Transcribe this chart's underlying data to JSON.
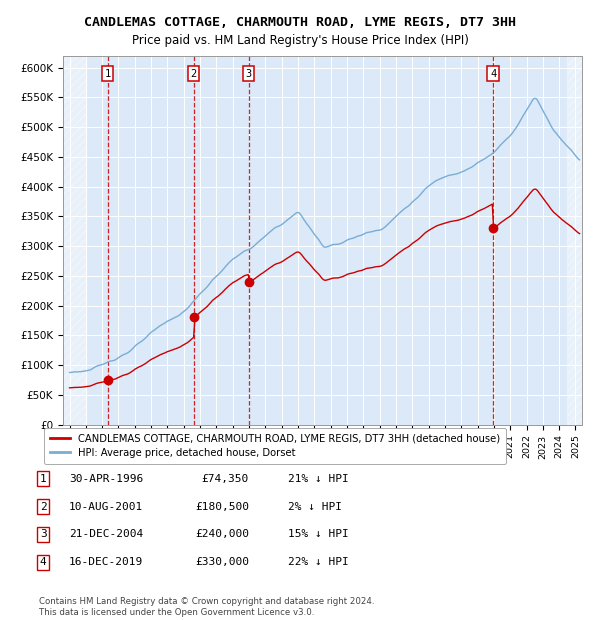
{
  "title": "CANDLEMAS COTTAGE, CHARMOUTH ROAD, LYME REGIS, DT7 3HH",
  "subtitle": "Price paid vs. HM Land Registry's House Price Index (HPI)",
  "ylim": [
    0,
    620000
  ],
  "ytick_vals": [
    0,
    50000,
    100000,
    150000,
    200000,
    250000,
    300000,
    350000,
    400000,
    450000,
    500000,
    550000,
    600000
  ],
  "ytick_labels": [
    "£0",
    "£50K",
    "£100K",
    "£150K",
    "£200K",
    "£250K",
    "£300K",
    "£350K",
    "£400K",
    "£450K",
    "£500K",
    "£550K",
    "£600K"
  ],
  "plot_bg": "#dce9f8",
  "trans_dates": [
    1996.33,
    2001.61,
    2004.97,
    2019.96
  ],
  "trans_prices": [
    74350,
    180500,
    240000,
    330000
  ],
  "trans_labels": [
    "1",
    "2",
    "3",
    "4"
  ],
  "transaction_dates_str": [
    "30-APR-1996",
    "10-AUG-2001",
    "21-DEC-2004",
    "16-DEC-2019"
  ],
  "transaction_prices_str": [
    "£74,350",
    "£180,500",
    "£240,000",
    "£330,000"
  ],
  "transaction_hpi_pct": [
    "21% ↓ HPI",
    "2% ↓ HPI",
    "15% ↓ HPI",
    "22% ↓ HPI"
  ],
  "legend_red": "CANDLEMAS COTTAGE, CHARMOUTH ROAD, LYME REGIS, DT7 3HH (detached house)",
  "legend_blue": "HPI: Average price, detached house, Dorset",
  "footer": "Contains HM Land Registry data © Crown copyright and database right 2024.\nThis data is licensed under the Open Government Licence v3.0.",
  "red_color": "#cc0000",
  "blue_color": "#7aadd4",
  "vline_color": "#cc0000",
  "hatch_color": "#bbbbbb"
}
